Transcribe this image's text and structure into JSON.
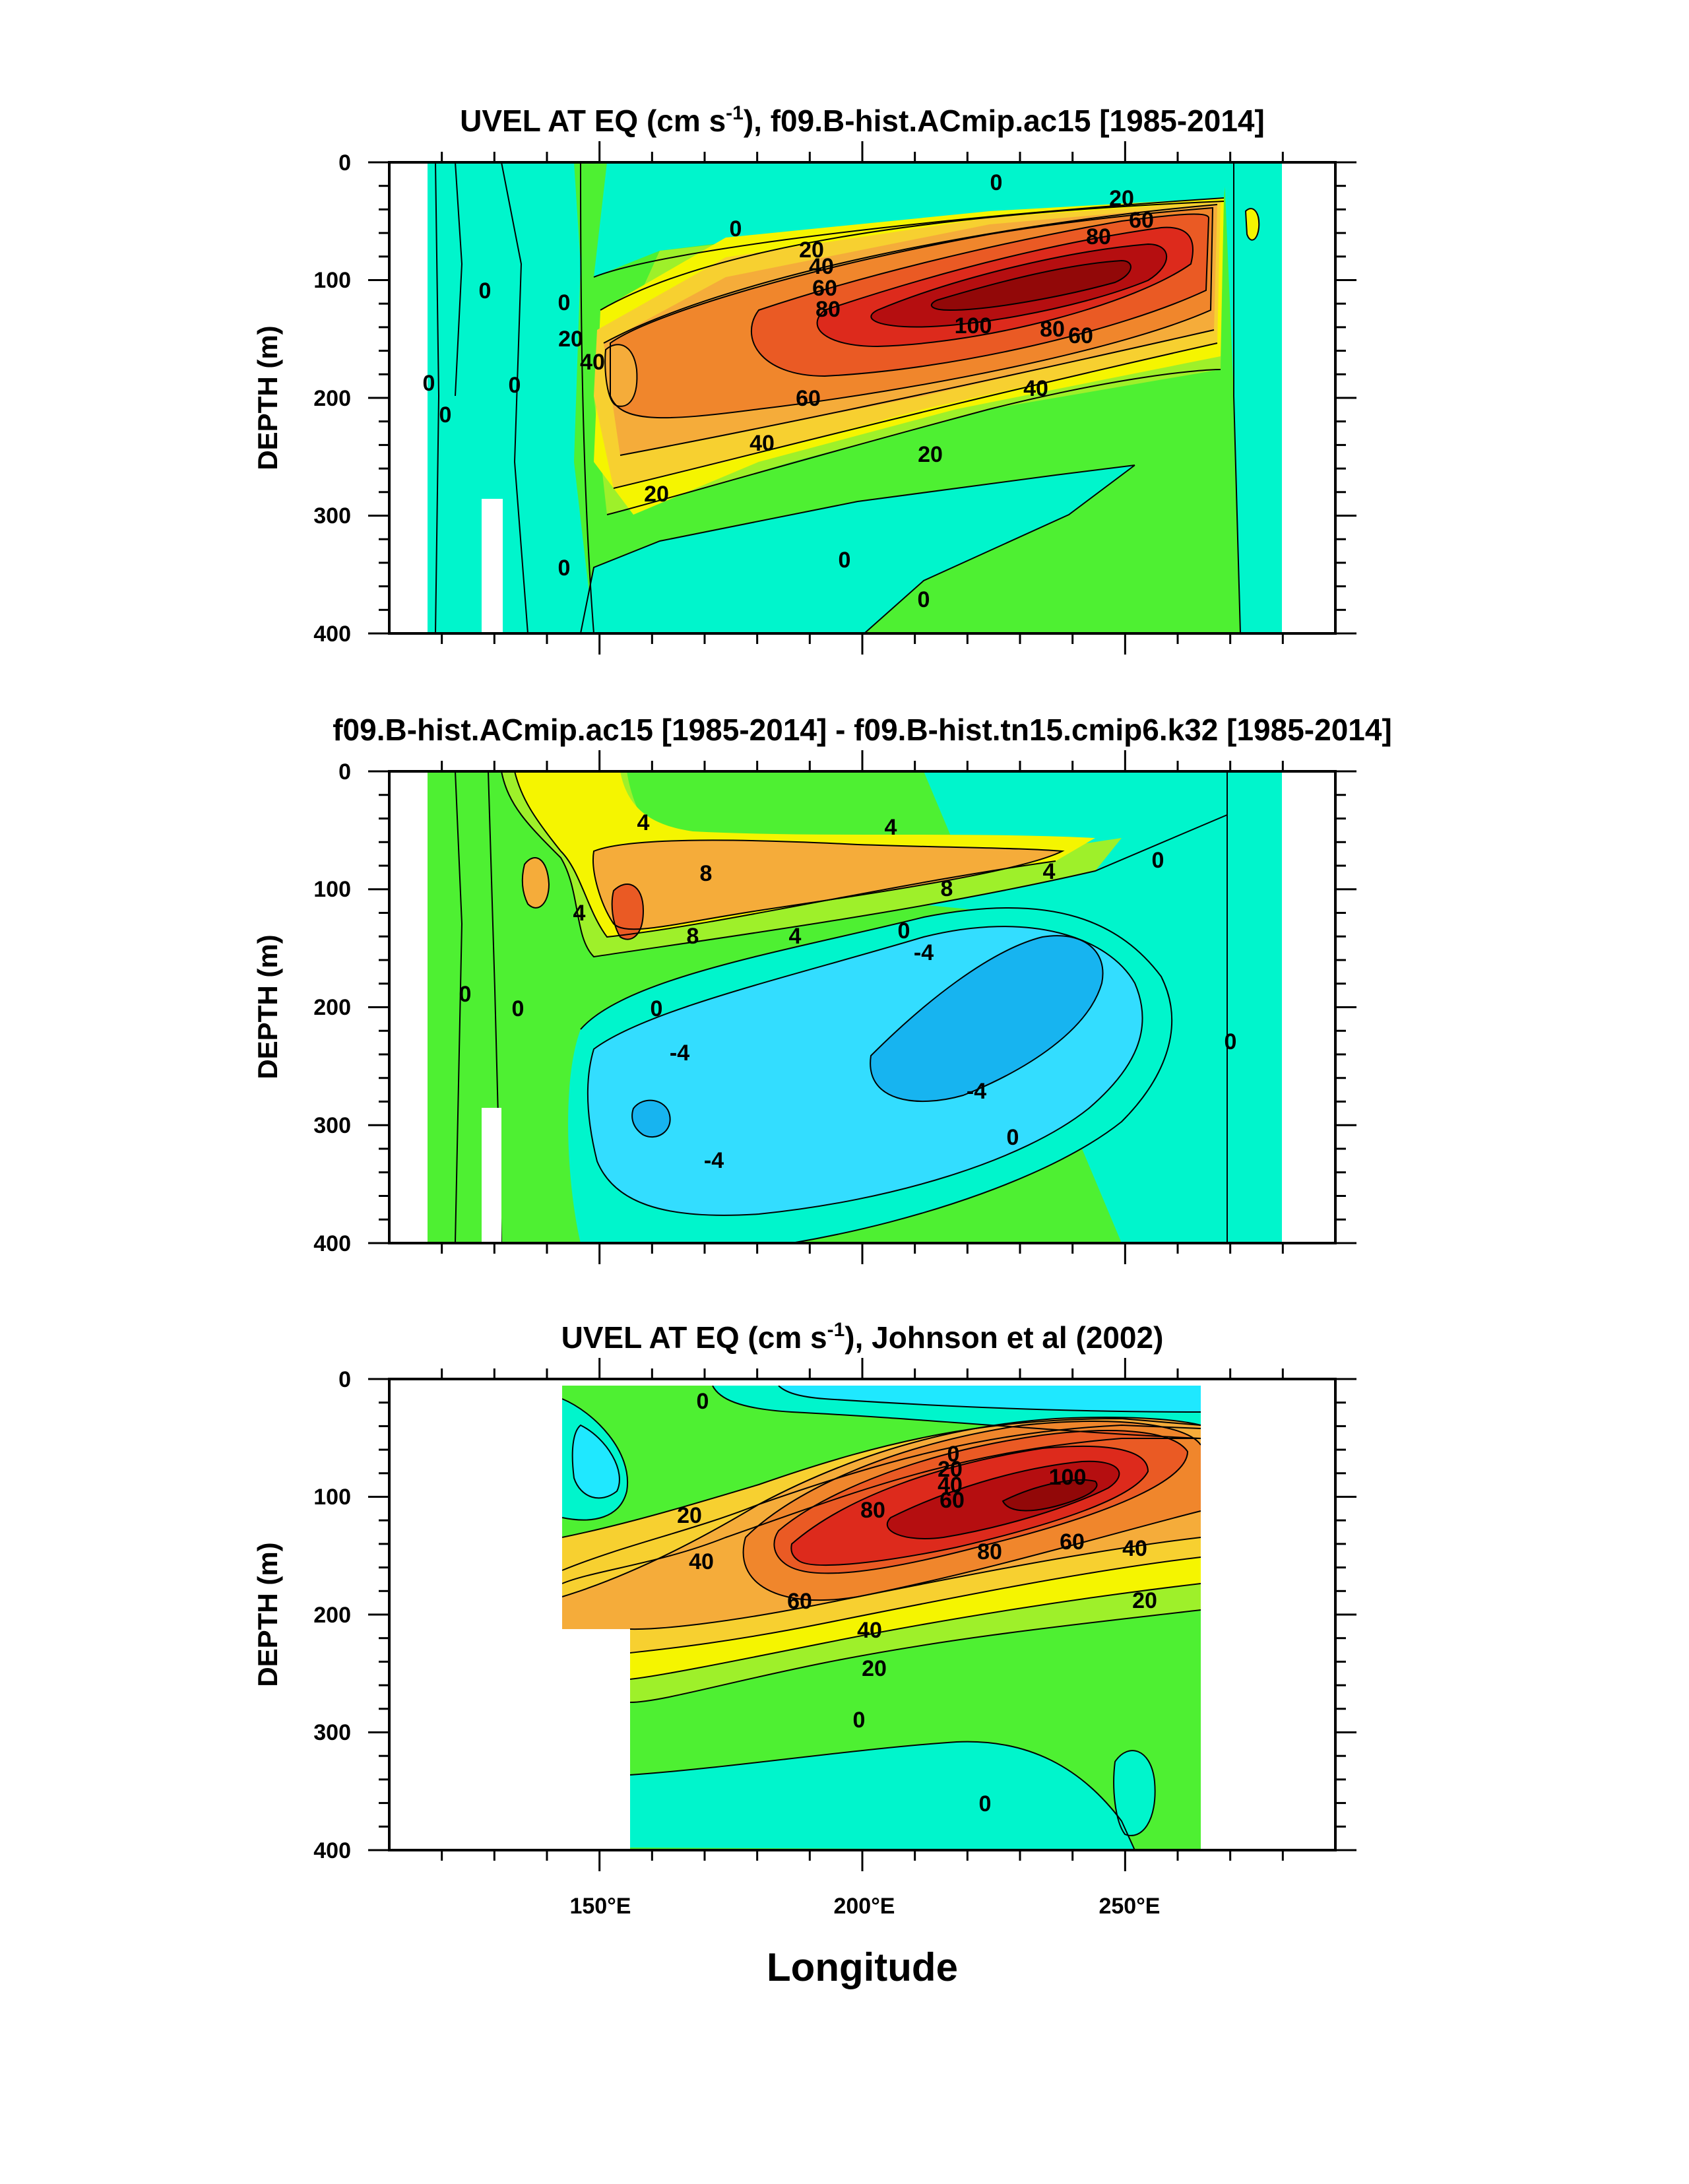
{
  "figure_xlabel": "Longitude",
  "chart_data": [
    {
      "type": "contour",
      "title": "UVEL AT EQ (cm s",
      "title_sup": "-1",
      "title_rest": "), f09.B-hist.ACmip.ac15 [1985-2014]",
      "ylabel": "DEPTH (m)",
      "xlabel": "Longitude",
      "xlim": [
        110,
        290
      ],
      "ylim": [
        0,
        400
      ],
      "yticks": [
        "0",
        "100",
        "200",
        "300",
        "400"
      ],
      "contour_interval": 10,
      "contour_labels": [
        "0",
        "0",
        "0",
        "0",
        "0",
        "0",
        "0",
        "0",
        "0",
        "0",
        "20",
        "20",
        "20",
        "20",
        "20",
        "40",
        "40",
        "40",
        "40",
        "60",
        "60",
        "60",
        "60",
        "80",
        "80",
        "80",
        "100"
      ],
      "max_value": 110,
      "core": {
        "longitude": 235,
        "depth": 115
      }
    },
    {
      "type": "contour",
      "title": "f09.B-hist.ACmip.ac15 [1985-2014] - f09.B-hist.tn15.cmip6.k32 [1985-2014]",
      "ylabel": "DEPTH (m)",
      "xlabel": "Longitude",
      "xlim": [
        110,
        290
      ],
      "ylim": [
        0,
        400
      ],
      "yticks": [
        "0",
        "100",
        "200",
        "300",
        "400"
      ],
      "contour_interval": 2,
      "contour_labels": [
        "4",
        "4",
        "4",
        "4",
        "4",
        "8",
        "8",
        "8",
        "0",
        "0",
        "0",
        "0",
        "0",
        "0",
        "0",
        "-4",
        "-4",
        "-4",
        "-4"
      ],
      "positive_max": 10,
      "negative_min": -10
    },
    {
      "type": "contour",
      "title": "UVEL AT EQ (cm s",
      "title_sup": "-1",
      "title_rest": "), Johnson et al (2002)",
      "ylabel": "DEPTH (m)",
      "xlabel": "Longitude",
      "xlim": [
        110,
        290
      ],
      "ylim": [
        0,
        400
      ],
      "yticks": [
        "0",
        "100",
        "200",
        "300",
        "400"
      ],
      "xticks": [
        "150°E",
        "200°E",
        "250°E"
      ],
      "data_extent_lon": [
        143,
        265
      ],
      "contour_interval": 10,
      "contour_labels": [
        "0",
        "0",
        "0",
        "0",
        "20",
        "20",
        "20",
        "20",
        "40",
        "40",
        "40",
        "40",
        "60",
        "60",
        "60",
        "80",
        "80",
        "100"
      ],
      "max_value": 110,
      "core": {
        "longitude": 233,
        "depth": 95
      }
    }
  ],
  "colors": {
    "cold2": "#17b4f0",
    "cold1": "#33ddff",
    "zero_neg": "#1fe8ff",
    "zero": "#00f5cc",
    "w1": "#4ef032",
    "w2": "#9ef02a",
    "w3": "#f5f500",
    "w4": "#f7d030",
    "w5": "#f5ac3a",
    "w6": "#f0862c",
    "w7": "#ea5a24",
    "w8": "#dd2a1c",
    "w9": "#b50e10",
    "w10": "#920808"
  }
}
